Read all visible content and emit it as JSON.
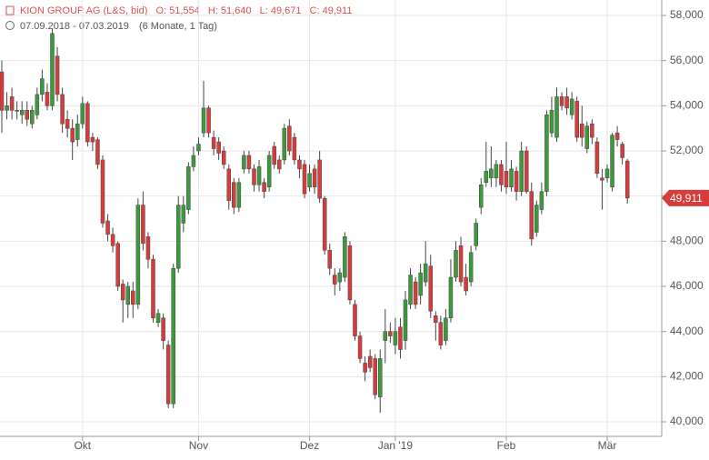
{
  "chart_data": {
    "type": "candlestick",
    "title": "KION GROUP AG (L&S, bid)",
    "ohlc_labels": [
      "O: 51,554",
      "H: 51,640",
      "L: 49,671",
      "C: 49,911"
    ],
    "subtitle": "07.09.2018 - 07.03.2019",
    "period": "(6 Monate, 1 Tag)",
    "up_color": "#3c9a3c",
    "down_color": "#d73c3c",
    "grid": true,
    "ylim": [
      40,
      58
    ],
    "yticks": [
      {
        "value": 40,
        "label": "40,000"
      },
      {
        "value": 42,
        "label": "42,000"
      },
      {
        "value": 44,
        "label": "44,000"
      },
      {
        "value": 46,
        "label": "46,000"
      },
      {
        "value": 48,
        "label": "48,000"
      },
      {
        "value": 50,
        "label": "50,000"
      },
      {
        "value": 52,
        "label": "52,000"
      },
      {
        "value": 54,
        "label": "54,000"
      },
      {
        "value": 56,
        "label": "56,000"
      },
      {
        "value": 58,
        "label": "58,000"
      }
    ],
    "last_price": {
      "value": 49.911,
      "label": "49,911"
    },
    "categories": [
      null,
      null,
      null,
      null,
      null,
      null,
      null,
      null,
      null,
      null,
      null,
      null,
      null,
      null,
      null,
      null,
      "Okt",
      null,
      null,
      null,
      null,
      null,
      null,
      null,
      null,
      null,
      null,
      null,
      null,
      null,
      null,
      null,
      null,
      null,
      null,
      null,
      null,
      null,
      null,
      "Nov",
      null,
      null,
      null,
      null,
      null,
      null,
      null,
      null,
      null,
      null,
      null,
      null,
      null,
      null,
      null,
      null,
      null,
      null,
      null,
      null,
      null,
      "Dez",
      null,
      null,
      null,
      null,
      null,
      null,
      null,
      null,
      null,
      null,
      null,
      null,
      null,
      null,
      null,
      null,
      "Jan '19",
      null,
      null,
      null,
      null,
      null,
      null,
      null,
      null,
      null,
      null,
      null,
      null,
      null,
      null,
      null,
      null,
      null,
      null,
      null,
      null,
      null,
      "Feb",
      null,
      null,
      null,
      null,
      null,
      null,
      null,
      null,
      null,
      null,
      null,
      null,
      null,
      null,
      null,
      null,
      null,
      null,
      null,
      "Mär",
      null,
      null,
      null,
      null
    ],
    "open": [
      55.5,
      53.8,
      54.4,
      53.8,
      53.6,
      53.8,
      53.2,
      53.6,
      54.5,
      54.6,
      54,
      56.2,
      54.5,
      53.4,
      53,
      52.5,
      53.2,
      54.1,
      52.6,
      52.5,
      51.6,
      48.9,
      48.3,
      47.9,
      46.1,
      45.2,
      45.8,
      45.2,
      49.6,
      48.2,
      47.2,
      44.4,
      44.6,
      43.4,
      40.8,
      46.8,
      48.8,
      49.4,
      51.3,
      52,
      52.8,
      53.9,
      52.6,
      52.4,
      52,
      51.2,
      50.6,
      49.5,
      51.2,
      51.8,
      51.2,
      50.5,
      50.6,
      50.4,
      52.2,
      51.6,
      51.6,
      53.1,
      52.6,
      51.6,
      51.4,
      50.4,
      51.2,
      51.6,
      49.9,
      47.6,
      46.5,
      46.2,
      46.4,
      47.8,
      45.2,
      43.8,
      42.6,
      42.9,
      42.8,
      41.1,
      43.6,
      44,
      43.4,
      44.2,
      43.6,
      45.2,
      46.2,
      45.6,
      46.2,
      46.9,
      44.7,
      44.4,
      43.6,
      44.6,
      46.4,
      47.8,
      46.4,
      46.2,
      47.8,
      49.5,
      50.6,
      50.8,
      50.8,
      51.4,
      51.1,
      50.4,
      51.1,
      50.2,
      52,
      50.2,
      48.4,
      49.4,
      50.2,
      52.8,
      52.6,
      54.4,
      54.4,
      53.6,
      54.2,
      53.2,
      52.1,
      53.2,
      52.4,
      50.8,
      50.8,
      50.4,
      52.8,
      52.3,
      51.554
    ],
    "high": [
      56,
      54.6,
      54.8,
      54.2,
      54.2,
      54.2,
      54,
      54.8,
      55.6,
      55,
      57.4,
      56.6,
      54.8,
      53.8,
      53.4,
      53.6,
      54.4,
      54.2,
      52.8,
      52.6,
      51.8,
      49.2,
      48.6,
      48,
      46.3,
      46.2,
      46.2,
      49.9,
      50.2,
      48.4,
      47.4,
      45,
      44.8,
      43.6,
      47,
      50,
      50,
      51.5,
      52.2,
      52.6,
      55.1,
      54,
      52.9,
      52.6,
      52.2,
      51.4,
      50.8,
      50.8,
      52,
      52,
      51.4,
      51.6,
      50.8,
      52,
      52.4,
      51.8,
      53.2,
      53.4,
      52.8,
      51.8,
      51.6,
      51.4,
      51.4,
      52,
      50,
      47.9,
      46.8,
      46.8,
      48.4,
      48,
      45.4,
      44,
      42.9,
      43.2,
      43,
      43.2,
      45,
      44.4,
      44.6,
      44.6,
      45.8,
      46.8,
      46.4,
      47,
      48,
      47.4,
      44.9,
      44.7,
      45,
      47.2,
      48,
      48.2,
      47,
      47.8,
      49,
      50.8,
      52.4,
      52.2,
      51.6,
      51.6,
      52.4,
      51.6,
      51.3,
      52.4,
      52.2,
      50.6,
      49.8,
      50.6,
      53.8,
      54.4,
      54.8,
      54.6,
      54.8,
      54.6,
      54.4,
      54,
      53.3,
      53.4,
      52.6,
      51.2,
      51.4,
      52.8,
      53.1,
      52.4,
      51.64
    ],
    "low": [
      52.8,
      53.4,
      53.4,
      53.4,
      53.2,
      53.1,
      53,
      53.4,
      54.2,
      53.8,
      53.8,
      54.2,
      52.8,
      52.6,
      51.6,
      52.2,
      53,
      52.2,
      52,
      51.2,
      48.6,
      48,
      47.5,
      45.8,
      44.4,
      44.6,
      44.6,
      45,
      47.6,
      46.8,
      44.4,
      44.2,
      43.2,
      40.6,
      40.6,
      46.6,
      48.4,
      49.2,
      51.1,
      51.8,
      52.6,
      52.6,
      51.8,
      51.6,
      51.2,
      49.4,
      49.2,
      49.3,
      51,
      51,
      50.2,
      50.2,
      49.9,
      50.2,
      51.2,
      51,
      51.4,
      51.8,
      51.4,
      50.8,
      49.9,
      50.2,
      50.1,
      49.7,
      47.4,
      46.5,
      45.6,
      45.8,
      46.2,
      45.2,
      43.6,
      42.6,
      41.8,
      42.2,
      41,
      40.4,
      42.6,
      43.5,
      43,
      42.8,
      43.2,
      45,
      45,
      45.2,
      46,
      44.6,
      43.6,
      43.2,
      43.4,
      44.4,
      46.2,
      46,
      45.6,
      46,
      47.6,
      49.2,
      50.4,
      50.4,
      50.4,
      50.2,
      50.1,
      50.2,
      49.8,
      50,
      50.1,
      47.8,
      48.2,
      49.2,
      50,
      52.6,
      52.4,
      53.8,
      53.6,
      53.4,
      52.4,
      52.2,
      51.9,
      52.3,
      50.8,
      49.4,
      50.6,
      50.2,
      52.2,
      51.4,
      49.671
    ],
    "close": [
      53.8,
      54,
      53.8,
      53.8,
      53.8,
      53.4,
      53.8,
      54.5,
      55.2,
      54,
      57.2,
      54.5,
      53.2,
      53,
      52.4,
      53.2,
      54.1,
      52.4,
      52.4,
      51.4,
      48.8,
      48.3,
      47.8,
      46,
      45.4,
      46,
      45.2,
      49.6,
      47.9,
      47.2,
      44.6,
      44.8,
      43.6,
      40.8,
      46.8,
      49.6,
      49.6,
      51.3,
      51.8,
      52.3,
      53.9,
      52.8,
      52.1,
      51.9,
      51.4,
      49.8,
      49.5,
      50.6,
      51.8,
      51.2,
      50.5,
      51.3,
      50.2,
      51.8,
      51.4,
      51.2,
      53,
      52,
      51.6,
      51.2,
      50.1,
      51,
      50.4,
      49.9,
      47.6,
      46.8,
      46.1,
      46.6,
      48.2,
      45.4,
      43.8,
      42.8,
      42.2,
      42.4,
      41.2,
      42.8,
      44,
      43.8,
      44,
      43.2,
      45.4,
      46.5,
      45.2,
      46.6,
      47,
      44.9,
      44.4,
      43.4,
      44.6,
      46.4,
      47.6,
      46.2,
      45.8,
      47.5,
      48.8,
      50.5,
      51.1,
      51.2,
      51.4,
      50.5,
      50.4,
      51.2,
      50.2,
      52,
      50.2,
      48.1,
      49.6,
      50.2,
      53.6,
      53.8,
      54.4,
      54,
      53.9,
      54.3,
      52.6,
      52.6,
      53.1,
      52.6,
      51,
      50.7,
      51.2,
      52.7,
      52.5,
      51.7,
      49.911
    ]
  }
}
